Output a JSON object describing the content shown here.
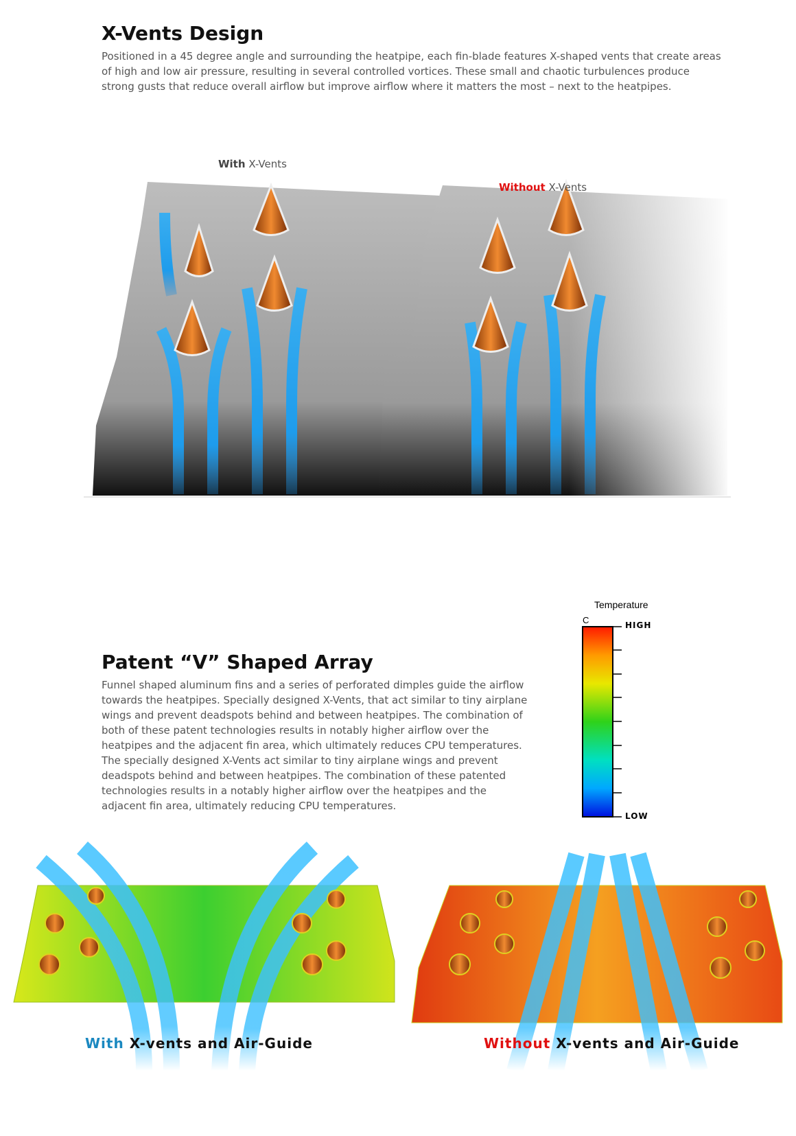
{
  "xvents": {
    "title": "X-Vents Design",
    "body": "Positioned in a 45 degree angle and surrounding the heatpipe, each fin-blade features X-shaped vents that create areas of high and low air pressure, resulting in several controlled vortices. These small and chaotic turbulences produce strong gusts that reduce overall airflow but improve airflow where it matters the most – next to the heatpipes.",
    "with_label": {
      "em": "With",
      "rest": "X-Vents"
    },
    "without_label": {
      "em": "Without",
      "rest": "X-Vents"
    }
  },
  "array": {
    "title": "Patent “V” Shaped Array",
    "body": "Funnel shaped aluminum fins and a series of perforated dimples guide the airflow towards the heatpipes. Specially designed X-Vents, that act similar to tiny airplane wings and prevent deadspots behind and between heatpipes. The combination of both of these patent technologies results in notably higher airflow over the heatpipes and the adjacent fin area, which ultimately reduces CPU temperatures. The specially designed X-Vents act similar to tiny airplane wings and prevent deadspots behind and between heatpipes. The combination of these patented technologies results in a notably higher airflow over the heatpipes and the adjacent fin area, ultimately reducing CPU temperatures.",
    "legend": {
      "title": "Temperature",
      "unit": "C",
      "high": "HIGH",
      "low": "LOW"
    },
    "with_label": {
      "em": "With",
      "rest": "X-vents and Air-Guide"
    },
    "without_label": {
      "em": "Without",
      "rest": "X-vents and Air-Guide"
    }
  }
}
